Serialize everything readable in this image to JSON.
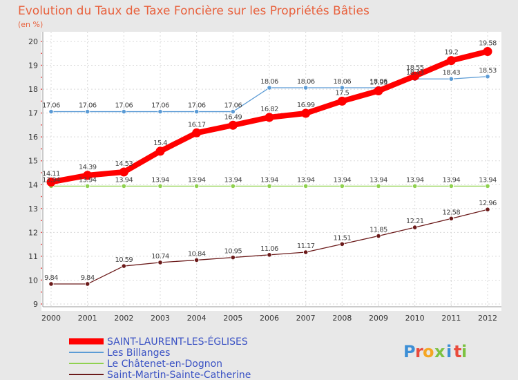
{
  "chart_data": {
    "type": "line",
    "title": "Evolution du Taux de Taxe Foncière sur les Propriétés Bâties",
    "unit_label": "(en %)",
    "x": [
      "2000",
      "2001",
      "2002",
      "2003",
      "2004",
      "2005",
      "2006",
      "2007",
      "2008",
      "2009",
      "2010",
      "2011",
      "2012"
    ],
    "ylim": [
      9,
      20
    ],
    "yticks": [
      "9",
      "10",
      "11",
      "12",
      "13",
      "14",
      "15",
      "16",
      "17",
      "18",
      "19",
      "20"
    ],
    "series": [
      {
        "name": "Saint-Martin-Sainte-Catherine",
        "color": "#6b1a1a",
        "values": [
          9.84,
          9.84,
          10.59,
          10.74,
          10.84,
          10.95,
          11.06,
          11.17,
          11.51,
          11.85,
          12.21,
          12.58,
          12.96
        ],
        "labels": [
          "9.84",
          "9.84",
          "10.59",
          "10.74",
          "10.84",
          "10.95",
          "11.06",
          "11.17",
          "11.51",
          "11.85",
          "12.21",
          "12.58",
          "12.96"
        ]
      },
      {
        "name": "Le Châtenet-en-Dognon",
        "color": "#8fd14f",
        "values": [
          13.94,
          13.94,
          13.94,
          13.94,
          13.94,
          13.94,
          13.94,
          13.94,
          13.94,
          13.94,
          13.94,
          13.94,
          13.94
        ],
        "labels": [
          "13.94",
          "13.94",
          "13.94",
          "13.94",
          "13.94",
          "13.94",
          "13.94",
          "13.94",
          "13.94",
          "13.94",
          "13.94",
          "13.94",
          "13.94"
        ]
      },
      {
        "name": "Les Billanges",
        "color": "#5b9bd5",
        "values": [
          17.06,
          17.06,
          17.06,
          17.06,
          17.06,
          17.06,
          18.06,
          18.06,
          18.06,
          18.06,
          18.43,
          18.43,
          18.53
        ],
        "labels": [
          "17.06",
          "17.06",
          "17.06",
          "17.06",
          "17.06",
          "17.06",
          "18.06",
          "18.06",
          "18.06",
          "18.06",
          "18.43",
          "18.43",
          "18.53"
        ]
      },
      {
        "name": "SAINT-LAURENT-LES-ÉGLISES",
        "color": "#ff0000",
        "values": [
          14.11,
          14.39,
          14.53,
          15.4,
          16.17,
          16.49,
          16.82,
          16.99,
          17.5,
          17.93,
          18.55,
          19.2,
          19.58
        ],
        "labels": [
          "14.11",
          "14.39",
          "14.53",
          "15.4",
          "16.17",
          "16.49",
          "16.82",
          "16.99",
          "17.5",
          "17.93",
          "18.55",
          "19.2",
          "19.58"
        ]
      }
    ],
    "legend": [
      "SAINT-LAURENT-LES-ÉGLISES",
      "Les Billanges",
      "Le Châtenet-en-Dognon",
      "Saint-Martin-Sainte-Catherine"
    ]
  },
  "logo": {
    "letters": [
      "P",
      "r",
      "o",
      "x",
      "i",
      "t",
      "i"
    ],
    "colors": [
      "#3d8fd6",
      "#e94b3c",
      "#f5a623",
      "#7cc242",
      "#3d8fd6",
      "#e94b3c",
      "#7cc242"
    ]
  }
}
